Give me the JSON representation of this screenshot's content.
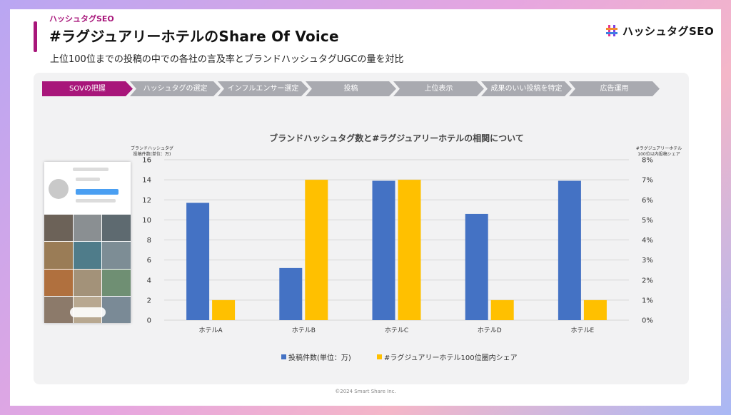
{
  "header": {
    "kicker": "ハッシュタグSEO",
    "title": "#ラグジュアリーホテルのShare Of Voice",
    "subtitle": "上位100位までの投稿の中での各社の言及率とブランドハッシュタグUGCの量を対比",
    "logo_text": "ハッシュタグSEO"
  },
  "steps": [
    {
      "label": "SOVの把握",
      "active": true
    },
    {
      "label": "ハッシュタグの選定",
      "active": false
    },
    {
      "label": "インフルエンサー選定",
      "active": false
    },
    {
      "label": "投稿",
      "active": false
    },
    {
      "label": "上位表示",
      "active": false
    },
    {
      "label": "成果のいい投稿を特定",
      "active": false
    },
    {
      "label": "広告運用",
      "active": false
    }
  ],
  "left_axis_caption": [
    "ブランドハッシュタグ",
    "投稿件数(単位：万)"
  ],
  "right_axis_caption": [
    "#ラグジュアリーホテル",
    "100位以内投稿シェア"
  ],
  "footer": "©2024 Smart Share Inc.",
  "colors": {
    "accent": "#a8167a",
    "blue": "#4472c4",
    "yellow": "#ffc000",
    "step_inactive": "#a9aab0"
  },
  "chart_data": {
    "type": "bar",
    "title": "ブランドハッシュタグ数と#ラグジュアリーホテルの相関について",
    "categories": [
      "ホテルA",
      "ホテルB",
      "ホテルC",
      "ホテルD",
      "ホテルE"
    ],
    "series": [
      {
        "name": "投稿件数(単位：万)",
        "axis": "left",
        "color": "#4472c4",
        "values": [
          11.7,
          5.2,
          13.9,
          10.6,
          13.9
        ]
      },
      {
        "name": "#ラグジュアリーホテル100位圏内シェア",
        "axis": "right",
        "color": "#ffc000",
        "values": [
          0.01,
          0.07,
          0.07,
          0.01,
          0.01
        ]
      }
    ],
    "y_left": {
      "min": 0,
      "max": 16,
      "ticks": [
        0,
        2,
        4,
        6,
        8,
        10,
        12,
        14,
        16
      ]
    },
    "y_right": {
      "min": 0,
      "max": 0.08,
      "ticks": [
        "0%",
        "1%",
        "2%",
        "3%",
        "4%",
        "5%",
        "6%",
        "7%",
        "8%"
      ]
    },
    "grid": true,
    "legend": "bottom"
  }
}
